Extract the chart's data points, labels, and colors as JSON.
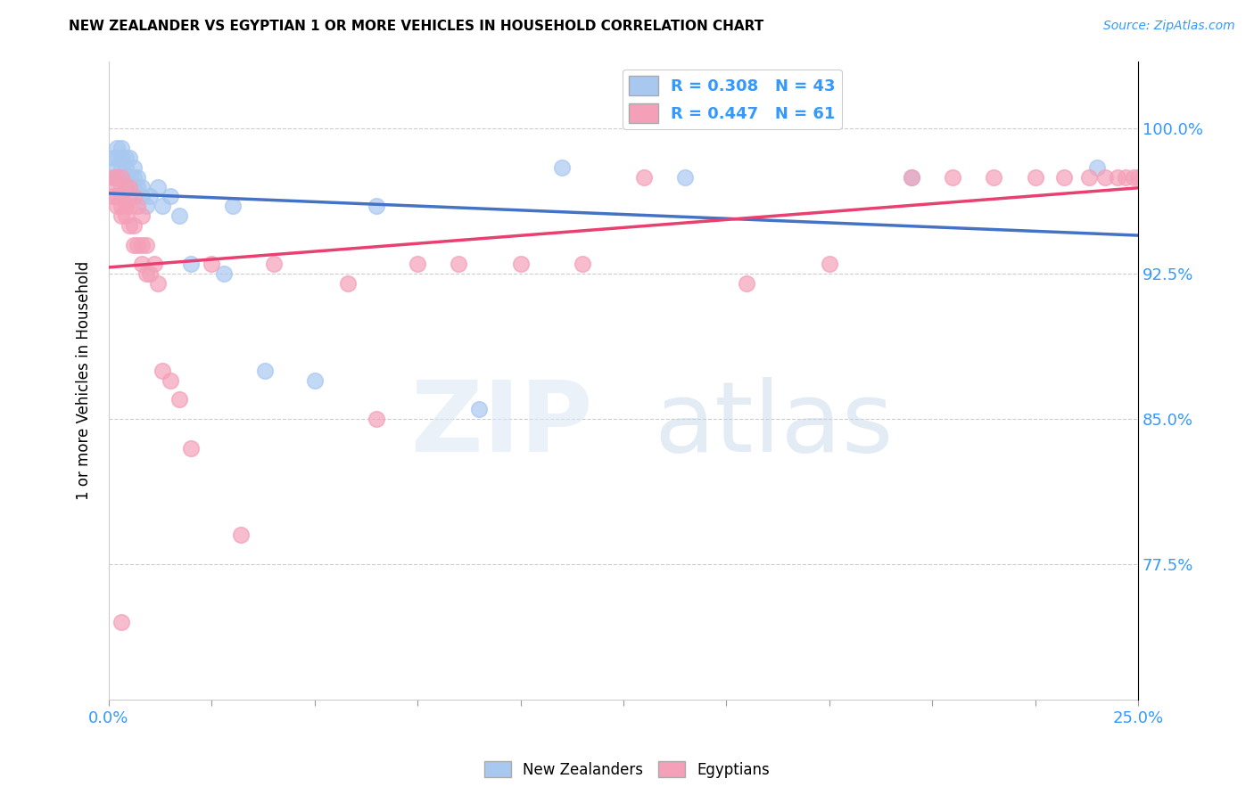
{
  "title": "NEW ZEALANDER VS EGYPTIAN 1 OR MORE VEHICLES IN HOUSEHOLD CORRELATION CHART",
  "source": "Source: ZipAtlas.com",
  "ylabel": "1 or more Vehicles in Household",
  "ytick_labels": [
    "100.0%",
    "92.5%",
    "85.0%",
    "77.5%"
  ],
  "ytick_values": [
    1.0,
    0.925,
    0.85,
    0.775
  ],
  "xmin": 0.0,
  "xmax": 0.25,
  "ymin": 0.705,
  "ymax": 1.035,
  "nz_color": "#A8C8F0",
  "eg_color": "#F4A0B8",
  "nz_line_color": "#4472C4",
  "eg_line_color": "#E84070",
  "nz_R": 0.308,
  "nz_N": 43,
  "eg_R": 0.447,
  "eg_N": 61,
  "nz_points_x": [
    0.001,
    0.001,
    0.002,
    0.002,
    0.002,
    0.002,
    0.003,
    0.003,
    0.003,
    0.003,
    0.003,
    0.004,
    0.004,
    0.004,
    0.004,
    0.005,
    0.005,
    0.005,
    0.005,
    0.006,
    0.006,
    0.006,
    0.007,
    0.007,
    0.008,
    0.008,
    0.009,
    0.01,
    0.012,
    0.013,
    0.015,
    0.017,
    0.02,
    0.028,
    0.03,
    0.038,
    0.05,
    0.065,
    0.09,
    0.11,
    0.14,
    0.195,
    0.24
  ],
  "nz_points_y": [
    0.975,
    0.985,
    0.99,
    0.985,
    0.98,
    0.975,
    0.99,
    0.985,
    0.98,
    0.975,
    0.97,
    0.985,
    0.98,
    0.975,
    0.97,
    0.985,
    0.975,
    0.97,
    0.965,
    0.98,
    0.975,
    0.97,
    0.975,
    0.97,
    0.97,
    0.965,
    0.96,
    0.965,
    0.97,
    0.96,
    0.965,
    0.955,
    0.93,
    0.925,
    0.96,
    0.875,
    0.87,
    0.96,
    0.855,
    0.98,
    0.975,
    0.975,
    0.98
  ],
  "eg_points_x": [
    0.001,
    0.001,
    0.001,
    0.002,
    0.002,
    0.002,
    0.003,
    0.003,
    0.003,
    0.003,
    0.004,
    0.004,
    0.004,
    0.005,
    0.005,
    0.005,
    0.006,
    0.006,
    0.006,
    0.007,
    0.007,
    0.008,
    0.008,
    0.008,
    0.009,
    0.009,
    0.01,
    0.011,
    0.012,
    0.013,
    0.015,
    0.017,
    0.02,
    0.025,
    0.032,
    0.04,
    0.058,
    0.065,
    0.075,
    0.085,
    0.1,
    0.115,
    0.13,
    0.155,
    0.175,
    0.195,
    0.205,
    0.215,
    0.225,
    0.232,
    0.238,
    0.242,
    0.245,
    0.247,
    0.249,
    0.25,
    0.251,
    0.252,
    0.253,
    0.254,
    0.003
  ],
  "eg_points_y": [
    0.975,
    0.97,
    0.965,
    0.975,
    0.965,
    0.96,
    0.975,
    0.965,
    0.96,
    0.955,
    0.97,
    0.96,
    0.955,
    0.97,
    0.96,
    0.95,
    0.965,
    0.95,
    0.94,
    0.96,
    0.94,
    0.955,
    0.94,
    0.93,
    0.94,
    0.925,
    0.925,
    0.93,
    0.92,
    0.875,
    0.87,
    0.86,
    0.835,
    0.93,
    0.79,
    0.93,
    0.92,
    0.85,
    0.93,
    0.93,
    0.93,
    0.93,
    0.975,
    0.92,
    0.93,
    0.975,
    0.975,
    0.975,
    0.975,
    0.975,
    0.975,
    0.975,
    0.975,
    0.975,
    0.975,
    0.975,
    0.975,
    0.975,
    0.975,
    0.975,
    0.745
  ]
}
